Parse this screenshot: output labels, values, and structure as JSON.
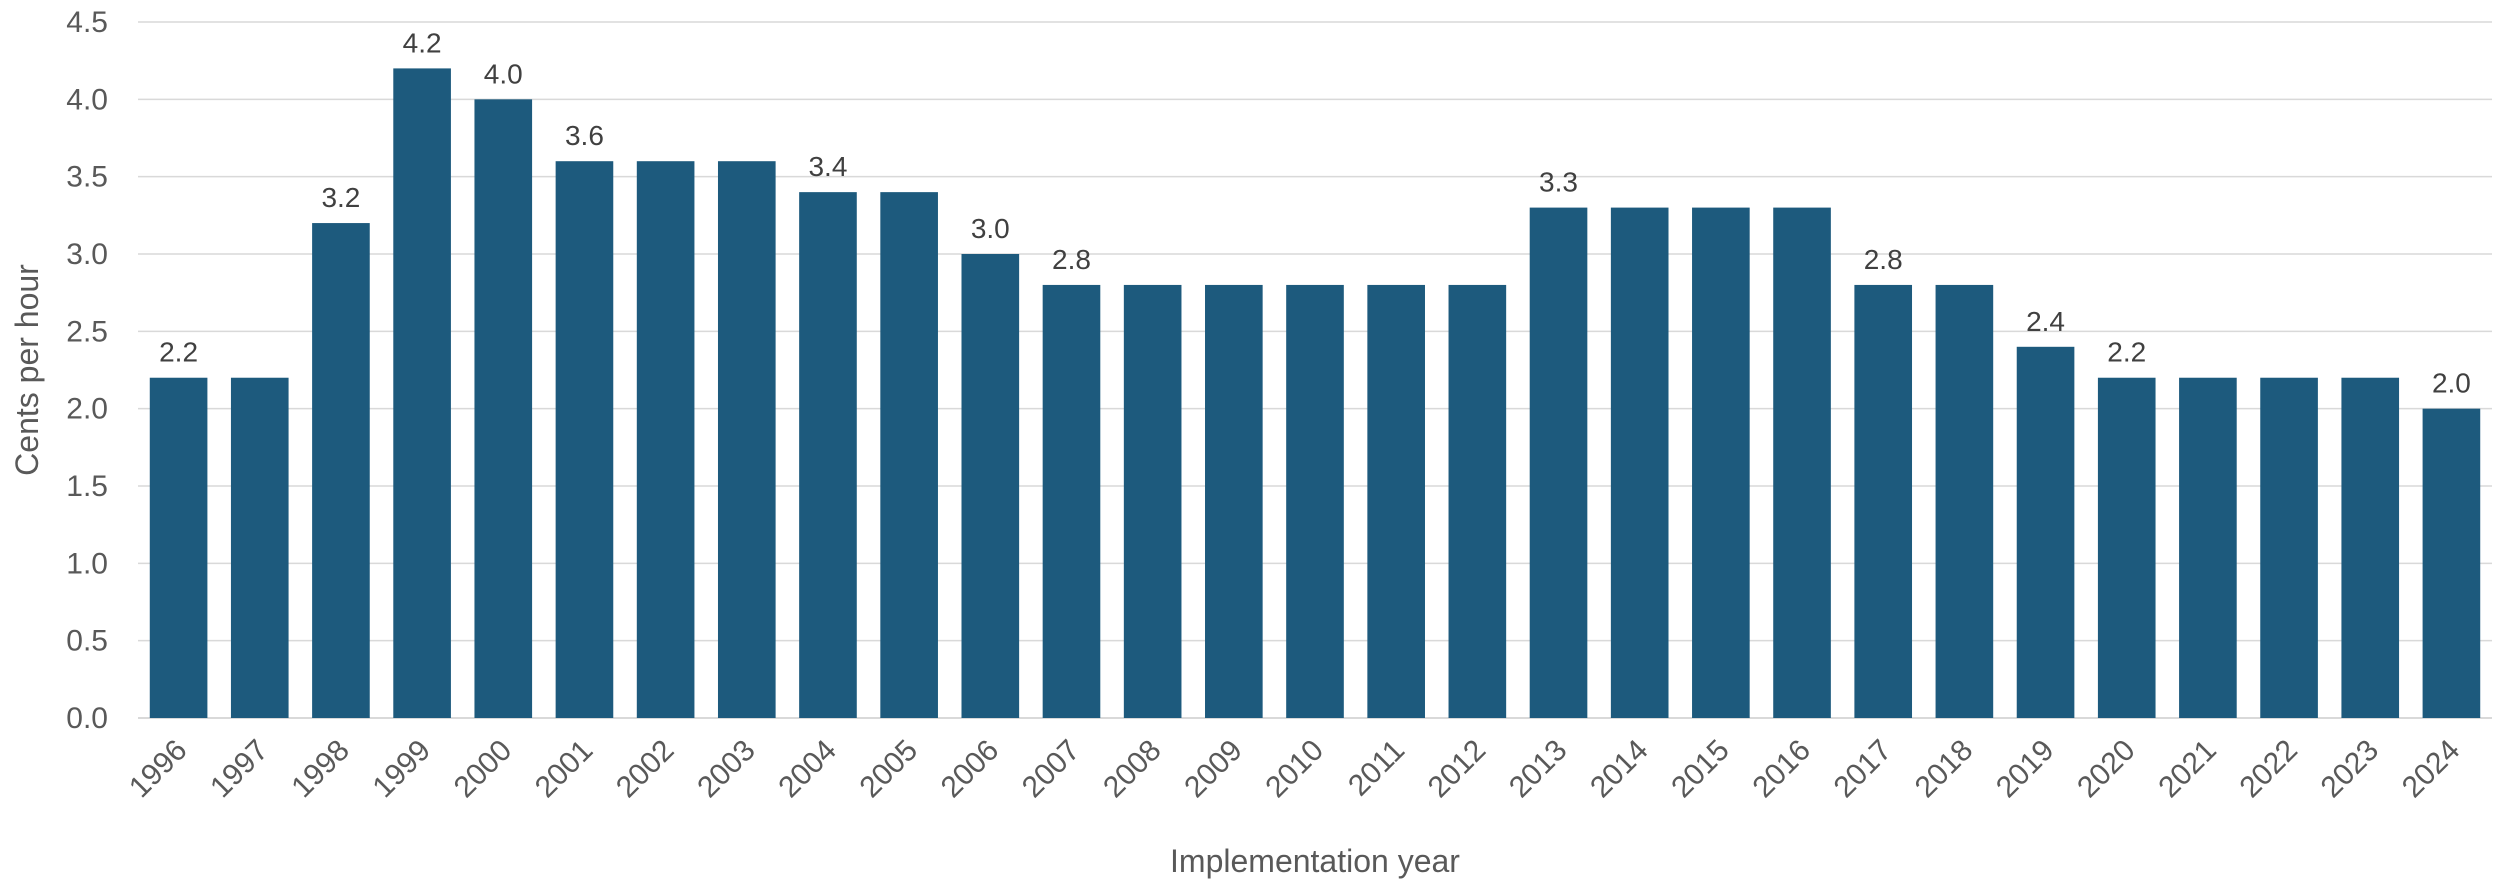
{
  "chart_data": {
    "type": "bar",
    "xlabel": "Implementation year",
    "ylabel": "Cents per hour",
    "ylim": [
      0,
      4.5
    ],
    "yticks": [
      "0.0",
      "0.5",
      "1.0",
      "1.5",
      "2.0",
      "2.5",
      "3.0",
      "3.5",
      "4.0",
      "4.5"
    ],
    "categories": [
      "1996",
      "1997",
      "1998",
      "1999",
      "2000",
      "2001",
      "2002",
      "2003",
      "2004",
      "2005",
      "2006",
      "2007",
      "2008",
      "2009",
      "2010",
      "2011",
      "2012",
      "2013",
      "2014",
      "2015",
      "2016",
      "2017",
      "2018",
      "2019",
      "2020",
      "2021",
      "2022",
      "2023",
      "2024"
    ],
    "values": [
      2.2,
      2.2,
      3.2,
      4.2,
      4.0,
      3.6,
      3.6,
      3.6,
      3.4,
      3.4,
      3.0,
      2.8,
      2.8,
      2.8,
      2.8,
      2.8,
      2.8,
      3.3,
      3.3,
      3.3,
      3.3,
      2.8,
      2.8,
      2.4,
      2.2,
      2.2,
      2.2,
      2.2,
      2.0
    ],
    "data_labels": [
      "2.2",
      "",
      "3.2",
      "4.2",
      "4.0",
      "3.6",
      "",
      "",
      "3.4",
      "",
      "3.0",
      "2.8",
      "",
      "",
      "",
      "",
      "",
      "3.3",
      "",
      "",
      "",
      "2.8",
      "",
      "2.4",
      "2.2",
      "",
      "",
      "",
      "2.0"
    ],
    "bar_color": "#1d5a7d",
    "grid": true,
    "legend": "none"
  }
}
